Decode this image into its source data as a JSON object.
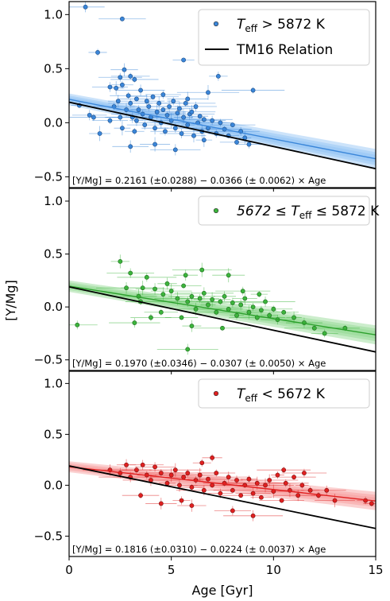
{
  "chart_data": [
    {
      "type": "scatter",
      "panel": "top",
      "xlim": [
        0,
        15
      ],
      "ylim": [
        -0.6,
        1.12
      ],
      "yticks": [
        1.0,
        0.5,
        0.0,
        -0.5
      ],
      "ytick_labels": [
        "1.0",
        "0.5",
        "0.0",
        "−0.5"
      ],
      "legend": {
        "position": "top-right",
        "entries": [
          {
            "label": "T",
            "sub": "eff",
            "rest": " > 5872 K",
            "marker": "point",
            "color": "#3a86d9"
          },
          {
            "label": "TM16 Relation",
            "marker": "line",
            "color": "#000000"
          }
        ]
      },
      "fit": {
        "intercept": 0.2161,
        "slope": -0.0366,
        "color": "#3a86d9",
        "band_color": "#8fc1f3"
      },
      "reference": {
        "intercept": 0.19,
        "slope": -0.041,
        "color": "#000000"
      },
      "equation": "[Y/Mg] = 0.2161 (±0.0288) − 0.0366 (± 0.0062) × Age",
      "series": {
        "name": "T_eff > 5872 K",
        "color": "#3a86d9",
        "edge": "#1f4d85",
        "points": [
          [
            0.8,
            1.07
          ],
          [
            1.4,
            0.65
          ],
          [
            2.0,
            0.33
          ],
          [
            2.3,
            0.32
          ],
          [
            2.5,
            0.42
          ],
          [
            2.7,
            0.49
          ],
          [
            2.6,
            0.96
          ],
          [
            3.0,
            0.43
          ],
          [
            3.2,
            0.4
          ],
          [
            6.2,
            0.15
          ],
          [
            5.6,
            0.58
          ],
          [
            6.8,
            0.28
          ],
          [
            7.3,
            0.43
          ],
          [
            9.0,
            0.3
          ],
          [
            1.0,
            0.07
          ],
          [
            1.2,
            0.05
          ],
          [
            1.5,
            -0.1
          ],
          [
            2.0,
            0.02
          ],
          [
            2.2,
            0.15
          ],
          [
            2.4,
            0.2
          ],
          [
            2.5,
            0.05
          ],
          [
            2.6,
            -0.05
          ],
          [
            2.8,
            0.12
          ],
          [
            2.9,
            0.25
          ],
          [
            3.0,
            0.18
          ],
          [
            3.1,
            0.05
          ],
          [
            3.2,
            -0.08
          ],
          [
            3.3,
            0.22
          ],
          [
            3.4,
            0.12
          ],
          [
            3.5,
            0.3
          ],
          [
            3.6,
            0.08
          ],
          [
            3.7,
            -0.02
          ],
          [
            3.8,
            0.2
          ],
          [
            3.9,
            0.15
          ],
          [
            4.0,
            0.05
          ],
          [
            4.1,
            0.24
          ],
          [
            4.2,
            -0.05
          ],
          [
            4.3,
            0.1
          ],
          [
            4.4,
            0.18
          ],
          [
            4.5,
            0.0
          ],
          [
            4.6,
            0.12
          ],
          [
            4.7,
            -0.08
          ],
          [
            4.8,
            0.07
          ],
          [
            4.9,
            0.15
          ],
          [
            5.0,
            0.02
          ],
          [
            5.1,
            0.2
          ],
          [
            5.2,
            -0.05
          ],
          [
            5.3,
            0.09
          ],
          [
            5.4,
            0.13
          ],
          [
            5.5,
            -0.1
          ],
          [
            5.6,
            0.05
          ],
          [
            5.7,
            0.18
          ],
          [
            5.8,
            -0.02
          ],
          [
            5.9,
            0.08
          ],
          [
            6.0,
            0.1
          ],
          [
            6.1,
            -0.12
          ],
          [
            6.3,
            0.0
          ],
          [
            6.4,
            0.06
          ],
          [
            6.5,
            -0.08
          ],
          [
            6.6,
            0.03
          ],
          [
            6.8,
            -0.05
          ],
          [
            7.0,
            0.02
          ],
          [
            7.2,
            -0.1
          ],
          [
            7.4,
            0.0
          ],
          [
            7.6,
            -0.06
          ],
          [
            7.8,
            -0.12
          ],
          [
            8.0,
            -0.02
          ],
          [
            8.2,
            -0.18
          ],
          [
            8.4,
            -0.08
          ],
          [
            8.6,
            -0.14
          ],
          [
            3.0,
            -0.22
          ],
          [
            4.2,
            -0.2
          ],
          [
            5.2,
            -0.25
          ],
          [
            8.8,
            -0.2
          ],
          [
            6.6,
            -0.16
          ],
          [
            0.5,
            0.16
          ],
          [
            2.6,
            0.35
          ],
          [
            3.3,
            0.02
          ],
          [
            4.6,
            0.26
          ],
          [
            5.8,
            0.22
          ]
        ]
      }
    },
    {
      "type": "scatter",
      "panel": "middle",
      "xlim": [
        0,
        15
      ],
      "ylim": [
        -0.6,
        1.12
      ],
      "yticks": [
        1.0,
        0.5,
        0.0,
        -0.5
      ],
      "ytick_labels": [
        "1.0",
        "0.5",
        "0.0",
        "−0.5"
      ],
      "legend": {
        "position": "top-right",
        "entries": [
          {
            "label": "5672 ≤ T",
            "sub": "eff",
            "rest": " ≤ 5872 K",
            "marker": "point",
            "color": "#3cb43c"
          }
        ]
      },
      "fit": {
        "intercept": 0.197,
        "slope": -0.0307,
        "color": "#2ca02c",
        "band_color": "#8fd88f"
      },
      "reference": {
        "intercept": 0.19,
        "slope": -0.041,
        "color": "#000000"
      },
      "equation": "[Y/Mg] = 0.1970 (±0.0346) − 0.0307 (± 0.0050) × Age",
      "series": {
        "name": "5672 ≤ T_eff ≤ 5872 K",
        "color": "#3cb43c",
        "edge": "#1e6b1e",
        "points": [
          [
            0.4,
            -0.17
          ],
          [
            2.5,
            0.43
          ],
          [
            3.0,
            0.32
          ],
          [
            2.8,
            0.18
          ],
          [
            3.4,
            0.1
          ],
          [
            3.8,
            0.28
          ],
          [
            4.2,
            0.17
          ],
          [
            4.6,
            0.12
          ],
          [
            5.0,
            0.15
          ],
          [
            5.3,
            0.08
          ],
          [
            5.6,
            0.2
          ],
          [
            5.8,
            0.05
          ],
          [
            6.0,
            0.1
          ],
          [
            6.2,
            -0.02
          ],
          [
            6.4,
            0.08
          ],
          [
            6.6,
            0.13
          ],
          [
            6.8,
            0.02
          ],
          [
            7.0,
            0.07
          ],
          [
            7.2,
            -0.05
          ],
          [
            7.4,
            0.05
          ],
          [
            7.6,
            0.1
          ],
          [
            7.8,
            -0.02
          ],
          [
            8.0,
            0.04
          ],
          [
            8.2,
            -0.08
          ],
          [
            8.4,
            0.02
          ],
          [
            8.6,
            0.08
          ],
          [
            8.8,
            -0.05
          ],
          [
            9.0,
            0.0
          ],
          [
            9.2,
            -0.1
          ],
          [
            9.4,
            -0.03
          ],
          [
            9.6,
            0.05
          ],
          [
            9.8,
            -0.08
          ],
          [
            10.0,
            -0.02
          ],
          [
            10.2,
            -0.12
          ],
          [
            10.5,
            -0.05
          ],
          [
            11.0,
            -0.1
          ],
          [
            11.5,
            -0.15
          ],
          [
            12.0,
            -0.2
          ],
          [
            4.5,
            -0.05
          ],
          [
            5.5,
            -0.1
          ],
          [
            6.0,
            -0.18
          ],
          [
            7.5,
            -0.2
          ],
          [
            4.0,
            -0.1
          ],
          [
            3.5,
            0.05
          ],
          [
            3.2,
            -0.15
          ],
          [
            5.7,
            0.3
          ],
          [
            6.5,
            0.35
          ],
          [
            7.8,
            0.3
          ],
          [
            8.5,
            0.15
          ],
          [
            9.3,
            0.12
          ],
          [
            4.8,
            0.22
          ],
          [
            3.6,
            0.18
          ],
          [
            12.5,
            -0.25
          ],
          [
            13.5,
            -0.2
          ],
          [
            5.8,
            -0.4
          ]
        ]
      }
    },
    {
      "type": "scatter",
      "panel": "bottom",
      "xlim": [
        0,
        15
      ],
      "ylim": [
        -0.7,
        1.12
      ],
      "xticks": [
        0,
        5,
        10,
        15
      ],
      "xtick_labels": [
        "0",
        "5",
        "10",
        "15"
      ],
      "xlabel": "Age [Gyr]",
      "yticks": [
        1.0,
        0.5,
        0.0,
        -0.5
      ],
      "ytick_labels": [
        "1.0",
        "0.5",
        "0.0",
        "−0.5"
      ],
      "legend": {
        "position": "top-right",
        "entries": [
          {
            "label": "T",
            "sub": "eff",
            "rest": " < 5672 K",
            "marker": "point",
            "color": "#e02020"
          }
        ]
      },
      "fit": {
        "intercept": 0.1816,
        "slope": -0.0224,
        "color": "#e02020",
        "band_color": "#f79a9a"
      },
      "reference": {
        "intercept": 0.19,
        "slope": -0.041,
        "color": "#000000"
      },
      "equation": "[Y/Mg] = 0.1816 (±0.0310) − 0.0224 (± 0.0037) × Age",
      "series": {
        "name": "T_eff < 5672 K",
        "color": "#e02020",
        "edge": "#7a1010",
        "points": [
          [
            2.0,
            0.15
          ],
          [
            2.5,
            0.12
          ],
          [
            2.8,
            0.2
          ],
          [
            3.0,
            0.08
          ],
          [
            3.3,
            0.15
          ],
          [
            3.6,
            0.2
          ],
          [
            3.8,
            0.1
          ],
          [
            4.0,
            0.05
          ],
          [
            4.2,
            0.18
          ],
          [
            4.5,
            0.12
          ],
          [
            4.8,
            0.02
          ],
          [
            5.0,
            0.1
          ],
          [
            5.2,
            0.15
          ],
          [
            5.4,
            0.0
          ],
          [
            5.6,
            0.08
          ],
          [
            5.8,
            0.12
          ],
          [
            6.0,
            -0.02
          ],
          [
            6.2,
            0.05
          ],
          [
            6.4,
            0.1
          ],
          [
            6.6,
            -0.05
          ],
          [
            6.8,
            0.06
          ],
          [
            7.0,
            0.0
          ],
          [
            7.2,
            0.12
          ],
          [
            7.4,
            -0.08
          ],
          [
            7.6,
            0.02
          ],
          [
            7.8,
            0.08
          ],
          [
            8.0,
            -0.05
          ],
          [
            8.2,
            0.05
          ],
          [
            8.4,
            -0.1
          ],
          [
            8.6,
            0.0
          ],
          [
            8.8,
            0.06
          ],
          [
            9.0,
            -0.08
          ],
          [
            9.2,
            0.02
          ],
          [
            9.4,
            -0.12
          ],
          [
            9.6,
            0.0
          ],
          [
            9.8,
            0.05
          ],
          [
            10.0,
            -0.06
          ],
          [
            10.2,
            0.1
          ],
          [
            10.4,
            -0.15
          ],
          [
            10.6,
            0.02
          ],
          [
            10.8,
            -0.05
          ],
          [
            11.0,
            0.08
          ],
          [
            11.2,
            -0.1
          ],
          [
            11.4,
            0.0
          ],
          [
            11.8,
            -0.05
          ],
          [
            12.2,
            -0.1
          ],
          [
            12.6,
            -0.05
          ],
          [
            13.0,
            -0.15
          ],
          [
            14.5,
            -0.15
          ],
          [
            14.8,
            -0.18
          ],
          [
            7.0,
            0.27
          ],
          [
            6.5,
            0.22
          ],
          [
            5.5,
            -0.15
          ],
          [
            6.0,
            -0.2
          ],
          [
            8.0,
            -0.25
          ],
          [
            9.0,
            -0.3
          ],
          [
            4.5,
            -0.18
          ],
          [
            3.5,
            -0.1
          ],
          [
            10.5,
            0.15
          ],
          [
            11.5,
            0.12
          ]
        ]
      }
    }
  ],
  "shared": {
    "ylabel": "[Y/Mg]",
    "xlabel": "Age [Gyr]",
    "xticks": [
      0,
      5,
      10,
      15
    ],
    "xtick_labels": [
      "0",
      "5",
      "10",
      "15"
    ]
  }
}
